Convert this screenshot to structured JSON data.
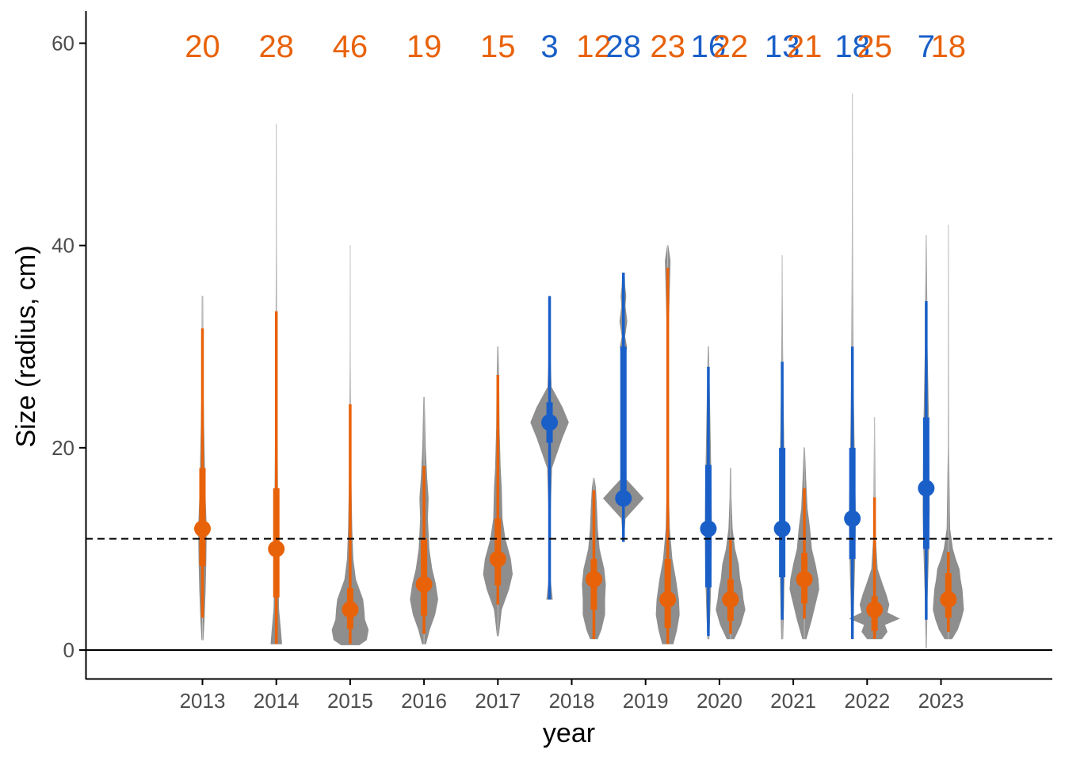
{
  "colors": {
    "orange": "#E8620A",
    "blue": "#1A5FC8",
    "violin": "#8E8E8E",
    "axis": "#000000",
    "tick_text": "#4d4d4d"
  },
  "chart_data": {
    "type": "violin",
    "title": "",
    "xlabel": "year",
    "ylabel": "Size (radius, cm)",
    "ylim": [
      -2.8,
      63
    ],
    "yticks": [
      0,
      20,
      40,
      60
    ],
    "categories": [
      "2013",
      "2014",
      "2015",
      "2016",
      "2017",
      "2018",
      "2019",
      "2020",
      "2021",
      "2022",
      "2023"
    ],
    "reference_lines": [
      {
        "y": 0,
        "style": "solid"
      },
      {
        "y": 11,
        "style": "dashed"
      }
    ],
    "groups": [
      {
        "year": "2013",
        "offset": 0,
        "color": "orange",
        "n": "20",
        "median": 12,
        "q1": 8.3,
        "q3": 18,
        "lo": 3.2,
        "hi": 31.8,
        "vmin": 1,
        "vmax": 35,
        "violin": [
          [
            1,
            0.02
          ],
          [
            3,
            0.05
          ],
          [
            6,
            0.08
          ],
          [
            9,
            0.1
          ],
          [
            12,
            0.11
          ],
          [
            15,
            0.08
          ],
          [
            18,
            0.06
          ],
          [
            22,
            0.04
          ],
          [
            26,
            0.02
          ],
          [
            30,
            0.015
          ],
          [
            35,
            0.01
          ]
        ]
      },
      {
        "year": "2014",
        "offset": 0,
        "color": "orange",
        "n": "28",
        "median": 10,
        "q1": 5.2,
        "q3": 16,
        "lo": 0.6,
        "hi": 33.5,
        "vmin": 0.6,
        "vmax": 52,
        "violin": [
          [
            0.6,
            0.15
          ],
          [
            2,
            0.12
          ],
          [
            4,
            0.07
          ],
          [
            7,
            0.05
          ],
          [
            10,
            0.06
          ],
          [
            13,
            0.05
          ],
          [
            16,
            0.04
          ],
          [
            20,
            0.03
          ],
          [
            25,
            0.02
          ],
          [
            30,
            0.015
          ],
          [
            40,
            0.005
          ],
          [
            52,
            0.002
          ]
        ]
      },
      {
        "year": "2015",
        "offset": 0,
        "color": "orange",
        "n": "46",
        "median": 4,
        "q1": 2.1,
        "q3": 6.1,
        "lo": 0.6,
        "hi": 24.3,
        "vmin": 0.5,
        "vmax": 40,
        "violin": [
          [
            0.5,
            0.25
          ],
          [
            1,
            0.45
          ],
          [
            2,
            0.5
          ],
          [
            3,
            0.4
          ],
          [
            4,
            0.38
          ],
          [
            5,
            0.35
          ],
          [
            6,
            0.25
          ],
          [
            7,
            0.15
          ],
          [
            9,
            0.08
          ],
          [
            12,
            0.05
          ],
          [
            16,
            0.03
          ],
          [
            20,
            0.02
          ],
          [
            25,
            0.01
          ],
          [
            30,
            0.005
          ],
          [
            40,
            0.002
          ]
        ]
      },
      {
        "year": "2016",
        "offset": 0,
        "color": "orange",
        "n": "19",
        "median": 6.5,
        "q1": 3.4,
        "q3": 11,
        "lo": 1.6,
        "hi": 18.2,
        "vmin": 0.6,
        "vmax": 25,
        "violin": [
          [
            0.6,
            0.05
          ],
          [
            2,
            0.15
          ],
          [
            3.5,
            0.3
          ],
          [
            5,
            0.38
          ],
          [
            6.5,
            0.32
          ],
          [
            8,
            0.22
          ],
          [
            10,
            0.14
          ],
          [
            13,
            0.1
          ],
          [
            15,
            0.12
          ],
          [
            17,
            0.08
          ],
          [
            20,
            0.04
          ],
          [
            25,
            0.01
          ]
        ]
      },
      {
        "year": "2017",
        "offset": 0,
        "color": "orange",
        "n": "15",
        "median": 9,
        "q1": 6.4,
        "q3": 13,
        "lo": 4.5,
        "hi": 27.2,
        "vmin": 1.4,
        "vmax": 30,
        "violin": [
          [
            1.4,
            0.02
          ],
          [
            4,
            0.1
          ],
          [
            6,
            0.3
          ],
          [
            7.5,
            0.4
          ],
          [
            9,
            0.35
          ],
          [
            11,
            0.2
          ],
          [
            13,
            0.12
          ],
          [
            16,
            0.1
          ],
          [
            18,
            0.07
          ],
          [
            22,
            0.04
          ],
          [
            26,
            0.03
          ],
          [
            30,
            0.01
          ]
        ]
      },
      {
        "year": "2018",
        "offset": -0.3,
        "color": "blue",
        "n": "3",
        "median": 22.5,
        "q1": 20.5,
        "q3": 24.5,
        "lo": 5,
        "hi": 35,
        "vmin": 5,
        "vmax": 35,
        "violin": [
          [
            5,
            0.08
          ],
          [
            7,
            0.02
          ],
          [
            12,
            0.01
          ],
          [
            18,
            0.06
          ],
          [
            21,
            0.35
          ],
          [
            22.5,
            0.52
          ],
          [
            24,
            0.35
          ],
          [
            26,
            0.05
          ],
          [
            30,
            0.01
          ],
          [
            35,
            0.005
          ]
        ]
      },
      {
        "year": "2018",
        "offset": 0.3,
        "color": "orange",
        "n": "12",
        "median": 7,
        "q1": 4,
        "q3": 9,
        "lo": 1.1,
        "hi": 15.8,
        "vmin": 1.1,
        "vmax": 17,
        "violin": [
          [
            1.1,
            0.1
          ],
          [
            2,
            0.2
          ],
          [
            3.5,
            0.3
          ],
          [
            5,
            0.3
          ],
          [
            6.5,
            0.32
          ],
          [
            8,
            0.28
          ],
          [
            10,
            0.15
          ],
          [
            12,
            0.1
          ],
          [
            14,
            0.08
          ],
          [
            16,
            0.05
          ],
          [
            17,
            0.01
          ]
        ]
      },
      {
        "year": "2019",
        "offset": -0.3,
        "color": "blue",
        "n": "28",
        "median": 15,
        "q1": 15,
        "q3": 30,
        "lo": 10.7,
        "hi": 37.3,
        "vmin": 10.7,
        "vmax": 37.3,
        "violin": [
          [
            10.7,
            0.01
          ],
          [
            13,
            0.05
          ],
          [
            14,
            0.3
          ],
          [
            15,
            0.55
          ],
          [
            16,
            0.3
          ],
          [
            17,
            0.04
          ],
          [
            19,
            0.04
          ],
          [
            20,
            0.07
          ],
          [
            21,
            0.04
          ],
          [
            24,
            0.02
          ],
          [
            28,
            0.03
          ],
          [
            30,
            0.09
          ],
          [
            31,
            0.04
          ],
          [
            32.5,
            0.1
          ],
          [
            34,
            0.05
          ],
          [
            35,
            0.07
          ],
          [
            36,
            0.04
          ],
          [
            37.3,
            0.03
          ]
        ]
      },
      {
        "year": "2019",
        "offset": 0.3,
        "color": "orange",
        "n": "23",
        "median": 5,
        "q1": 2.2,
        "q3": 9,
        "lo": 0.6,
        "hi": 37.8,
        "vmin": 0.6,
        "vmax": 40,
        "violin": [
          [
            0.6,
            0.15
          ],
          [
            2,
            0.25
          ],
          [
            3.5,
            0.32
          ],
          [
            5,
            0.3
          ],
          [
            7,
            0.22
          ],
          [
            9,
            0.12
          ],
          [
            12,
            0.05
          ],
          [
            15,
            0.03
          ],
          [
            20,
            0.02
          ],
          [
            25,
            0.015
          ],
          [
            30,
            0.01
          ],
          [
            37,
            0.06
          ],
          [
            38.5,
            0.07
          ],
          [
            40,
            0.01
          ]
        ]
      },
      {
        "year": "2020",
        "offset": -0.15,
        "color": "blue",
        "n": "16",
        "median": 12,
        "q1": 6.2,
        "q3": 18.3,
        "lo": 1.4,
        "hi": 28,
        "vmin": 1.1,
        "vmax": 30,
        "violin": [
          [
            1.1,
            0.02
          ],
          [
            4,
            0.05
          ],
          [
            8,
            0.08
          ],
          [
            12,
            0.09
          ],
          [
            16,
            0.08
          ],
          [
            20,
            0.06
          ],
          [
            24,
            0.04
          ],
          [
            28,
            0.02
          ],
          [
            30,
            0.01
          ]
        ]
      },
      {
        "year": "2020",
        "offset": 0.15,
        "color": "orange",
        "n": "22",
        "median": 5,
        "q1": 2.9,
        "q3": 7,
        "lo": 1.6,
        "hi": 10.9,
        "vmin": 1.1,
        "vmax": 18,
        "violin": [
          [
            1.1,
            0.1
          ],
          [
            2.5,
            0.28
          ],
          [
            4,
            0.4
          ],
          [
            5,
            0.35
          ],
          [
            6,
            0.32
          ],
          [
            7,
            0.26
          ],
          [
            8.5,
            0.22
          ],
          [
            10,
            0.12
          ],
          [
            12,
            0.05
          ],
          [
            15,
            0.02
          ],
          [
            18,
            0.01
          ]
        ]
      },
      {
        "year": "2021",
        "offset": -0.15,
        "color": "blue",
        "n": "13",
        "median": 12,
        "q1": 7.2,
        "q3": 20,
        "lo": 3,
        "hi": 28.5,
        "vmin": 1.1,
        "vmax": 39,
        "violin": [
          [
            1.1,
            0.02
          ],
          [
            4,
            0.04
          ],
          [
            8,
            0.06
          ],
          [
            12,
            0.07
          ],
          [
            16,
            0.06
          ],
          [
            20,
            0.05
          ],
          [
            25,
            0.03
          ],
          [
            30,
            0.015
          ],
          [
            35,
            0.008
          ],
          [
            39,
            0.003
          ]
        ]
      },
      {
        "year": "2021",
        "offset": 0.15,
        "color": "orange",
        "n": "21",
        "median": 7,
        "q1": 4.6,
        "q3": 9.6,
        "lo": 3.1,
        "hi": 16,
        "vmin": 1.1,
        "vmax": 20,
        "violin": [
          [
            1.1,
            0.05
          ],
          [
            3,
            0.2
          ],
          [
            4.5,
            0.3
          ],
          [
            6,
            0.4
          ],
          [
            7,
            0.38
          ],
          [
            8.5,
            0.3
          ],
          [
            10,
            0.2
          ],
          [
            12,
            0.15
          ],
          [
            14,
            0.08
          ],
          [
            17,
            0.04
          ],
          [
            20,
            0.01
          ]
        ]
      },
      {
        "year": "2022",
        "offset": -0.2,
        "color": "blue",
        "n": "18",
        "median": 13,
        "q1": 9,
        "q3": 20,
        "lo": 1.1,
        "hi": 30,
        "vmin": 1.1,
        "vmax": 55,
        "violin": [
          [
            1.1,
            0.02
          ],
          [
            5,
            0.04
          ],
          [
            9,
            0.07
          ],
          [
            13,
            0.09
          ],
          [
            17,
            0.07
          ],
          [
            21,
            0.05
          ],
          [
            26,
            0.03
          ],
          [
            30,
            0.02
          ],
          [
            38,
            0.01
          ],
          [
            45,
            0.005
          ],
          [
            55,
            0.002
          ]
        ]
      },
      {
        "year": "2022",
        "offset": 0.1,
        "color": "orange",
        "n": "25",
        "median": 4,
        "q1": 1.9,
        "q3": 5.3,
        "lo": 1.1,
        "hi": 15.1,
        "vmin": 1.1,
        "vmax": 23,
        "violin": [
          [
            1.1,
            0.2
          ],
          [
            1.8,
            0.35
          ],
          [
            2.5,
            0.28
          ],
          [
            3.1,
            0.68
          ],
          [
            3.7,
            0.35
          ],
          [
            4.5,
            0.4
          ],
          [
            5.5,
            0.32
          ],
          [
            6.5,
            0.22
          ],
          [
            8,
            0.08
          ],
          [
            11,
            0.03
          ],
          [
            15,
            0.02
          ],
          [
            23,
            0.005
          ]
        ]
      },
      {
        "year": "2023",
        "offset": -0.2,
        "color": "blue",
        "n": "7",
        "median": 16,
        "q1": 10,
        "q3": 23,
        "lo": 3,
        "hi": 34.5,
        "vmin": 0.2,
        "vmax": 41,
        "violin": [
          [
            0.2,
            0.01
          ],
          [
            5,
            0.03
          ],
          [
            10,
            0.07
          ],
          [
            14,
            0.09
          ],
          [
            18,
            0.08
          ],
          [
            22,
            0.07
          ],
          [
            26,
            0.05
          ],
          [
            30,
            0.03
          ],
          [
            35,
            0.02
          ],
          [
            41,
            0.005
          ]
        ]
      },
      {
        "year": "2023",
        "offset": 0.1,
        "color": "orange",
        "n": "18",
        "median": 5,
        "q1": 3.2,
        "q3": 7.6,
        "lo": 1.8,
        "hi": 9.7,
        "vmin": 1.1,
        "vmax": 42,
        "violin": [
          [
            1.1,
            0.1
          ],
          [
            2,
            0.25
          ],
          [
            3,
            0.35
          ],
          [
            4,
            0.42
          ],
          [
            5,
            0.4
          ],
          [
            6,
            0.38
          ],
          [
            7,
            0.33
          ],
          [
            8,
            0.3
          ],
          [
            9,
            0.2
          ],
          [
            10,
            0.12
          ],
          [
            12,
            0.04
          ],
          [
            20,
            0.01
          ],
          [
            30,
            0.005
          ],
          [
            42,
            0.002
          ]
        ]
      }
    ]
  }
}
